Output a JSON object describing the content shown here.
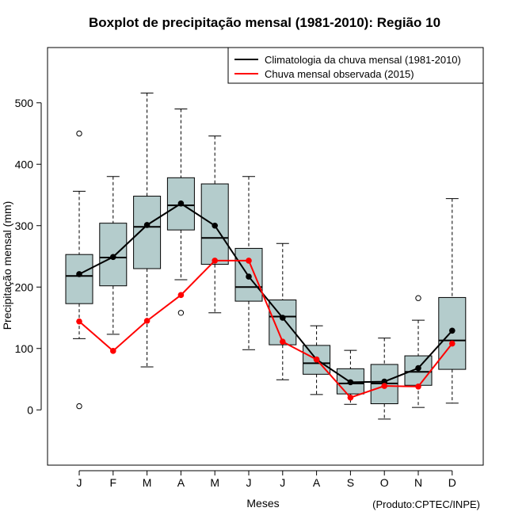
{
  "chart_data": {
    "type": "boxplot",
    "title": "Boxplot de precipitação mensal (1981-2010): Região 10",
    "xlabel": "Meses",
    "ylabel": "Precipitação mensal (mm)",
    "credit": "(Produto:CPTEC/INPE)",
    "ylim": [
      -90,
      590
    ],
    "yticks": [
      0,
      100,
      200,
      300,
      400,
      500
    ],
    "categories": [
      "J",
      "F",
      "M",
      "A",
      "M",
      "J",
      "J",
      "A",
      "S",
      "O",
      "N",
      "D"
    ],
    "box_color": "#b4cccc",
    "boxes": [
      {
        "whisker_low": 116,
        "q1": 173,
        "median": 218,
        "q3": 253,
        "whisker_high": 356,
        "outliers": [
          450,
          6
        ]
      },
      {
        "whisker_low": 123,
        "q1": 202,
        "median": 248,
        "q3": 304,
        "whisker_high": 380,
        "outliers": []
      },
      {
        "whisker_low": 70,
        "q1": 230,
        "median": 298,
        "q3": 348,
        "whisker_high": 516,
        "outliers": []
      },
      {
        "whisker_low": 212,
        "q1": 293,
        "median": 333,
        "q3": 378,
        "whisker_high": 490,
        "outliers": [
          158
        ]
      },
      {
        "whisker_low": 158,
        "q1": 237,
        "median": 280,
        "q3": 368,
        "whisker_high": 446,
        "outliers": []
      },
      {
        "whisker_low": 98,
        "q1": 177,
        "median": 200,
        "q3": 263,
        "whisker_high": 380,
        "outliers": []
      },
      {
        "whisker_low": 49,
        "q1": 106,
        "median": 152,
        "q3": 179,
        "whisker_high": 271,
        "outliers": []
      },
      {
        "whisker_low": 25,
        "q1": 58,
        "median": 76,
        "q3": 105,
        "whisker_high": 137,
        "outliers": []
      },
      {
        "whisker_low": 9,
        "q1": 26,
        "median": 43,
        "q3": 67,
        "whisker_high": 97,
        "outliers": []
      },
      {
        "whisker_low": -15,
        "q1": 10,
        "median": 43,
        "q3": 74,
        "whisker_high": 117,
        "outliers": []
      },
      {
        "whisker_low": 4,
        "q1": 40,
        "median": 62,
        "q3": 88,
        "whisker_high": 146,
        "outliers": [
          182
        ]
      },
      {
        "whisker_low": 11,
        "q1": 66,
        "median": 113,
        "q3": 183,
        "whisker_high": 344,
        "outliers": []
      }
    ],
    "series": [
      {
        "name": "Climatologia da chuva mensal (1981-2010)",
        "color": "#000000",
        "values": [
          221,
          249,
          301,
          336,
          300,
          217,
          150,
          82,
          45,
          46,
          68,
          129
        ]
      },
      {
        "name": "Chuva mensal observada (2015)",
        "color": "#ff0000",
        "values": [
          144,
          96,
          145,
          187,
          243,
          243,
          111,
          82,
          20,
          39,
          38,
          108
        ]
      }
    ],
    "legend_position": "top-right"
  }
}
